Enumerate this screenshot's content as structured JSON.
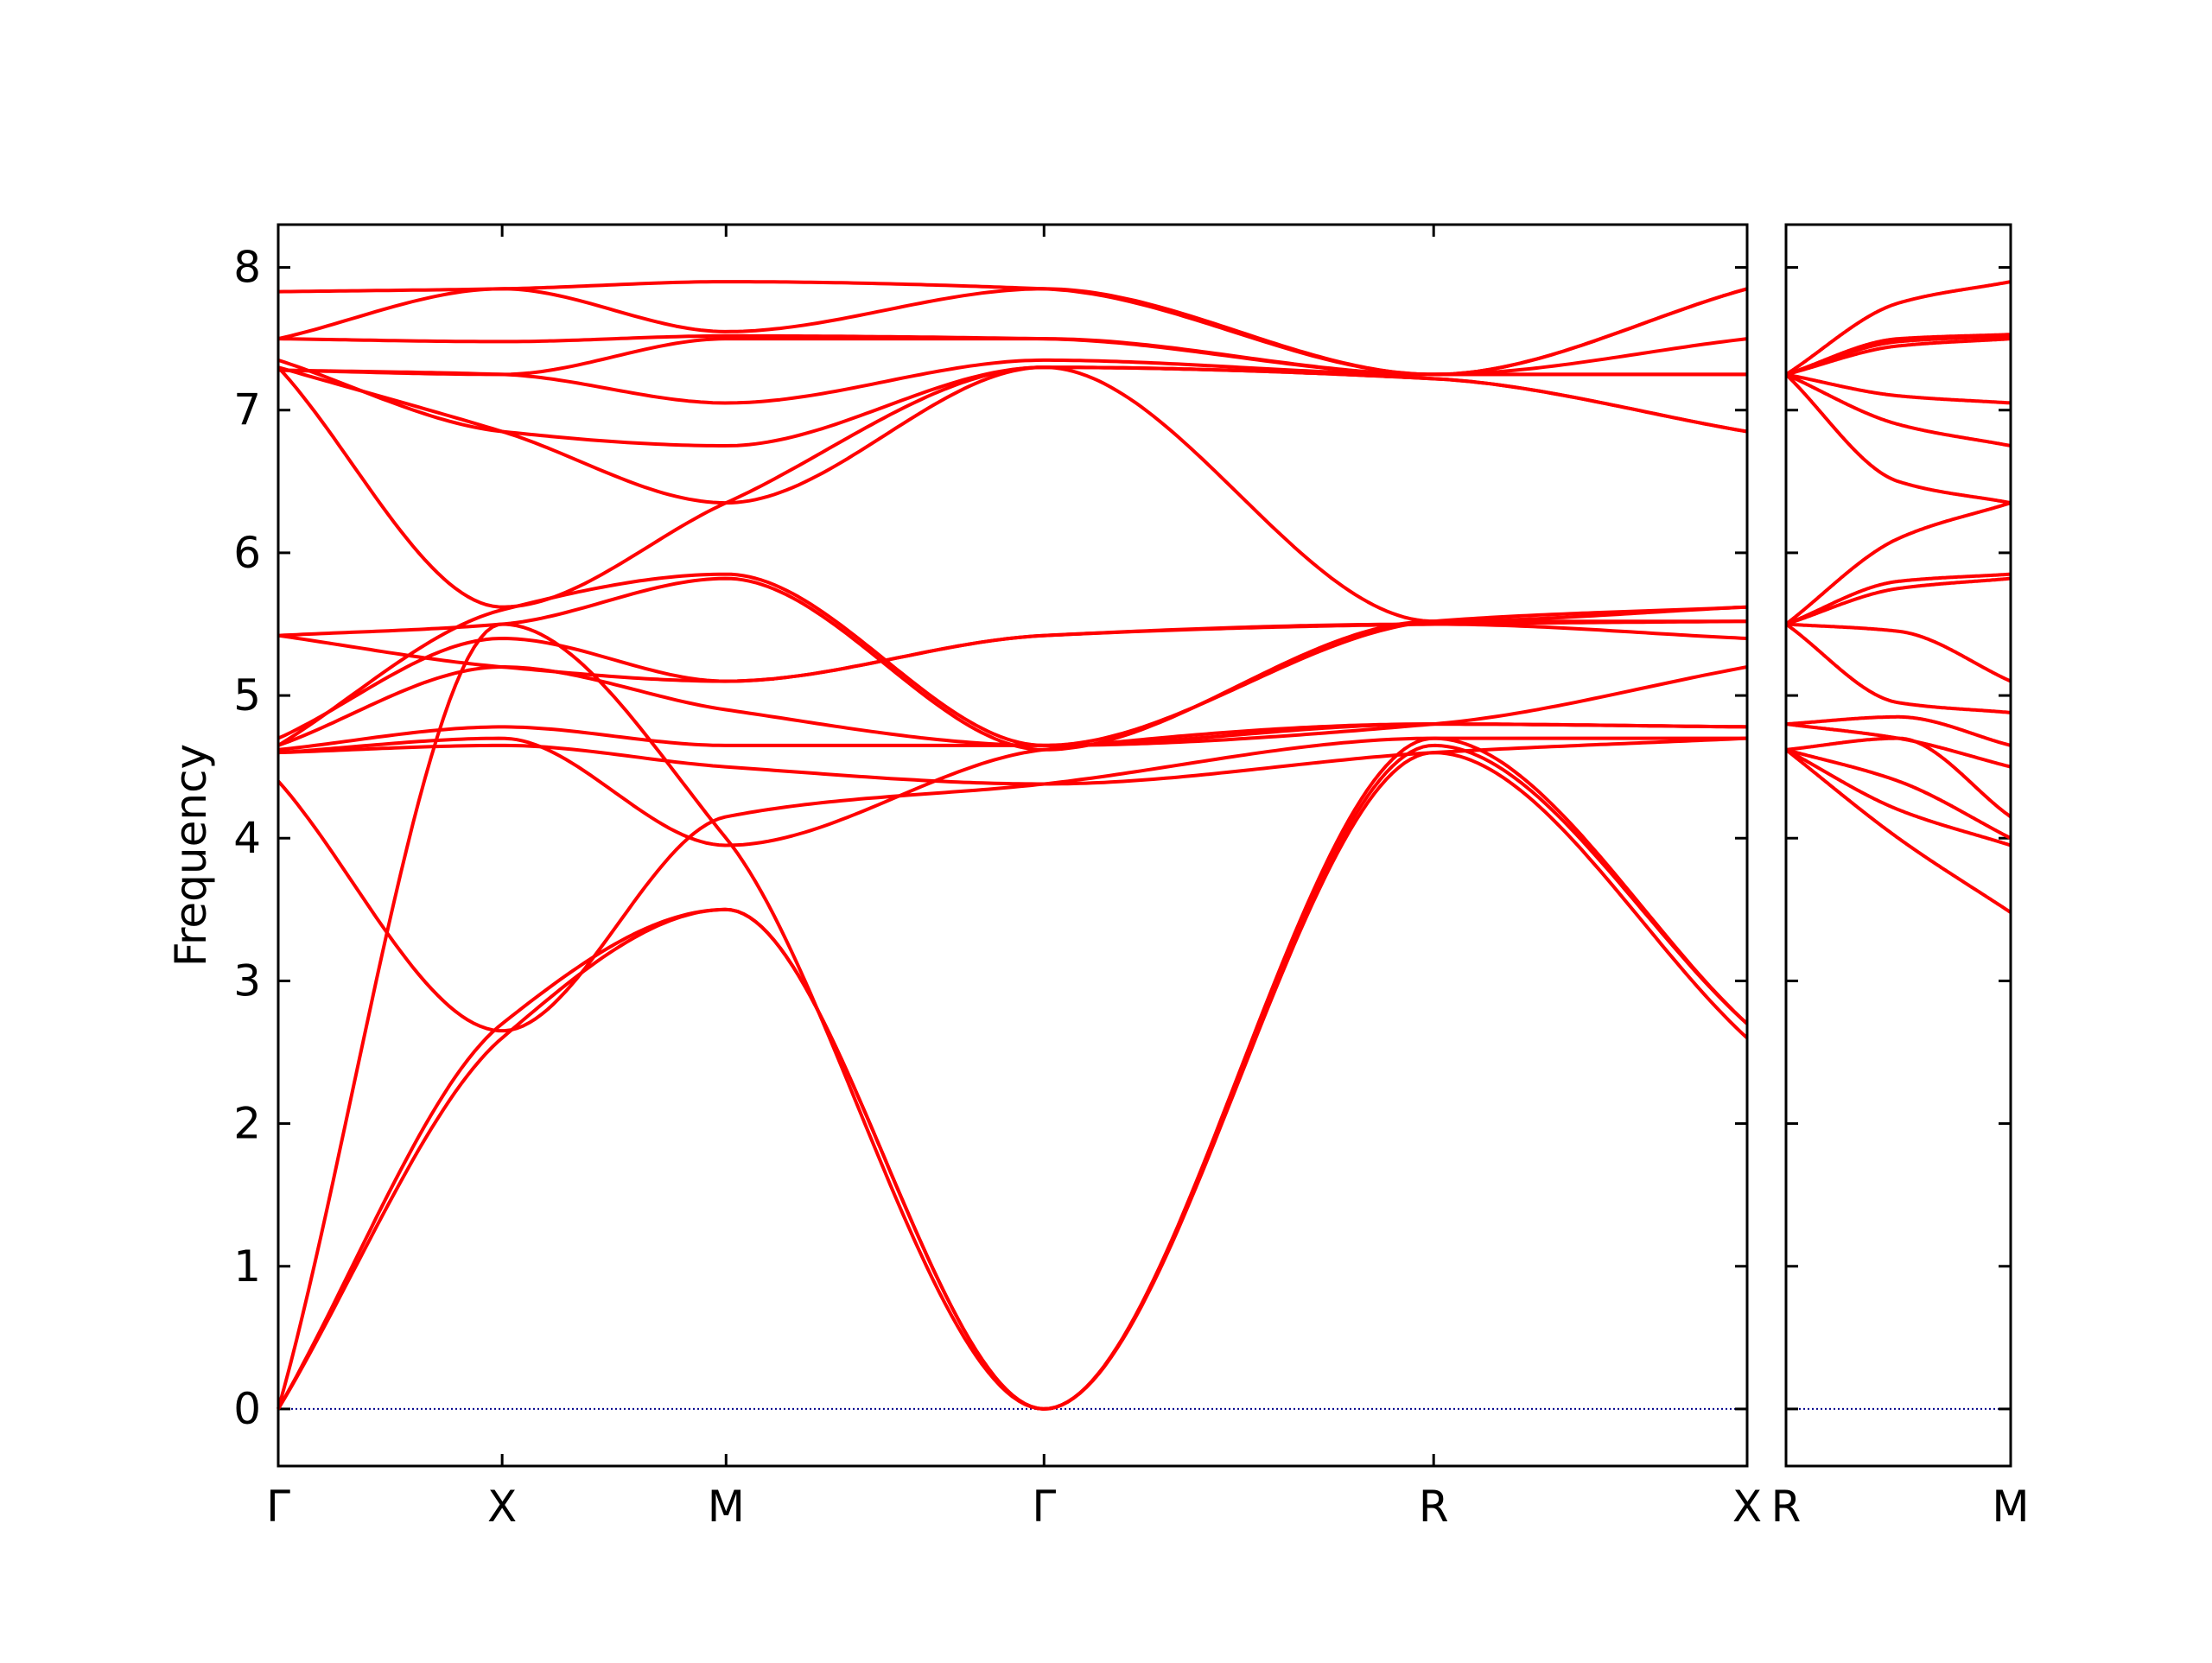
{
  "chart_data": {
    "type": "line",
    "ylabel": "Frequency",
    "ylim": [
      -0.4,
      8.3
    ],
    "yticks": [
      0,
      1,
      2,
      3,
      4,
      5,
      6,
      7,
      8
    ],
    "line_color": "#ff0000",
    "zero_line_color": "#00008b",
    "panels": [
      {
        "xlim": [
          0,
          3.28
        ],
        "ticks": [
          {
            "x": 0,
            "label": "Γ"
          },
          {
            "x": 0.5,
            "label": "X"
          },
          {
            "x": 1.0,
            "label": "M"
          },
          {
            "x": 1.71,
            "label": "Γ"
          },
          {
            "x": 2.58,
            "label": "R"
          },
          {
            "x": 3.28,
            "label": "X"
          }
        ],
        "bands": [
          {
            "x": [
              0,
              0.5,
              1.0,
              1.71,
              2.58,
              3.28
            ],
            "y": [
              0,
              2.6,
              3.5,
              0,
              4.6,
              2.6
            ]
          },
          {
            "x": [
              0,
              0.5,
              1.0,
              1.71,
              2.58,
              3.28
            ],
            "y": [
              0,
              2.7,
              3.5,
              0,
              4.65,
              2.7
            ]
          },
          {
            "x": [
              0,
              0.5,
              1.0,
              1.71,
              2.58,
              3.28
            ],
            "y": [
              0,
              5.5,
              4.0,
              0,
              4.7,
              2.7
            ]
          },
          {
            "x": [
              0,
              0.5,
              1.0,
              1.71,
              2.58,
              3.28
            ],
            "y": [
              4.4,
              2.65,
              4.15,
              4.38,
              4.7,
              4.7
            ]
          },
          {
            "x": [
              0,
              0.5,
              1.0,
              1.71,
              2.58,
              3.28
            ],
            "y": [
              4.6,
              4.65,
              4.5,
              4.38,
              4.6,
              4.7
            ]
          },
          {
            "x": [
              0,
              0.5,
              1.0,
              1.71,
              2.58,
              3.28
            ],
            "y": [
              4.6,
              4.7,
              3.95,
              4.62,
              4.8,
              4.78
            ]
          },
          {
            "x": [
              0,
              0.5,
              1.0,
              1.71,
              2.58,
              3.28
            ],
            "y": [
              4.62,
              4.78,
              4.65,
              4.65,
              4.8,
              4.78
            ]
          },
          {
            "x": [
              0,
              0.5,
              1.0,
              1.71,
              2.58,
              3.28
            ],
            "y": [
              4.65,
              5.2,
              4.9,
              4.65,
              4.8,
              5.2
            ]
          },
          {
            "x": [
              0,
              0.5,
              1.0,
              1.71,
              2.58,
              3.28
            ],
            "y": [
              4.7,
              5.4,
              5.1,
              5.42,
              5.5,
              5.4
            ]
          },
          {
            "x": [
              0,
              0.5,
              1.0,
              1.71,
              2.58,
              3.28
            ],
            "y": [
              5.42,
              5.2,
              5.1,
              5.42,
              5.5,
              5.52
            ]
          },
          {
            "x": [
              0,
              0.5,
              1.0,
              1.71,
              2.58,
              3.28
            ],
            "y": [
              5.42,
              5.5,
              5.82,
              4.62,
              5.52,
              5.52
            ]
          },
          {
            "x": [
              0,
              0.5,
              1.0,
              1.71,
              2.58,
              3.28
            ],
            "y": [
              4.65,
              5.6,
              5.85,
              4.65,
              5.52,
              5.62
            ]
          },
          {
            "x": [
              0,
              0.5,
              1.0,
              1.71,
              2.58,
              3.28
            ],
            "y": [
              7.3,
              5.62,
              6.35,
              7.3,
              5.52,
              5.62
            ]
          },
          {
            "x": [
              0,
              0.5,
              1.0,
              1.71,
              2.58,
              3.28
            ],
            "y": [
              7.3,
              6.85,
              6.35,
              7.3,
              7.22,
              6.85
            ]
          },
          {
            "x": [
              0,
              0.5,
              1.0,
              1.71,
              2.58,
              3.28
            ],
            "y": [
              7.35,
              6.85,
              6.75,
              7.3,
              7.22,
              6.85
            ]
          },
          {
            "x": [
              0,
              0.5,
              1.0,
              1.71,
              2.58,
              3.28
            ],
            "y": [
              7.28,
              7.25,
              7.05,
              7.35,
              7.25,
              7.25
            ]
          },
          {
            "x": [
              0,
              0.5,
              1.0,
              1.71,
              2.58,
              3.28
            ],
            "y": [
              7.28,
              7.25,
              7.5,
              7.5,
              7.25,
              7.25
            ]
          },
          {
            "x": [
              0,
              0.5,
              1.0,
              1.71,
              2.58,
              3.28
            ],
            "y": [
              7.5,
              7.48,
              7.52,
              7.5,
              7.25,
              7.5
            ]
          },
          {
            "x": [
              0,
              0.5,
              1.0,
              1.71,
              2.58,
              3.28
            ],
            "y": [
              7.5,
              7.85,
              7.55,
              7.85,
              7.25,
              7.85
            ]
          },
          {
            "x": [
              0,
              0.5,
              1.0,
              1.71,
              2.58,
              3.28
            ],
            "y": [
              7.83,
              7.85,
              7.9,
              7.85,
              7.25,
              7.85
            ]
          }
        ]
      },
      {
        "xlim": [
          0,
          1
        ],
        "ticks": [
          {
            "x": 0,
            "label": "R"
          },
          {
            "x": 1,
            "label": "M"
          }
        ],
        "bands": [
          {
            "x": [
              0,
              0.5,
              1
            ],
            "y": [
              4.62,
              4.0,
              3.48
            ]
          },
          {
            "x": [
              0,
              0.5,
              1
            ],
            "y": [
              4.62,
              4.2,
              3.95
            ]
          },
          {
            "x": [
              0,
              0.5,
              1
            ],
            "y": [
              4.62,
              4.4,
              4.0
            ]
          },
          {
            "x": [
              0,
              0.5,
              1
            ],
            "y": [
              4.62,
              4.7,
              4.15
            ]
          },
          {
            "x": [
              0,
              0.5,
              1
            ],
            "y": [
              4.8,
              4.7,
              4.5
            ]
          },
          {
            "x": [
              0,
              0.5,
              1
            ],
            "y": [
              4.8,
              4.85,
              4.65
            ]
          },
          {
            "x": [
              0,
              0.5,
              1
            ],
            "y": [
              5.5,
              4.95,
              4.88
            ]
          },
          {
            "x": [
              0,
              0.5,
              1
            ],
            "y": [
              5.5,
              5.45,
              5.1
            ]
          },
          {
            "x": [
              0,
              0.5,
              1
            ],
            "y": [
              5.5,
              5.75,
              5.82
            ]
          },
          {
            "x": [
              0,
              0.5,
              1
            ],
            "y": [
              5.5,
              5.8,
              5.85
            ]
          },
          {
            "x": [
              0,
              0.5,
              1
            ],
            "y": [
              5.5,
              6.1,
              6.35
            ]
          },
          {
            "x": [
              0,
              0.5,
              1
            ],
            "y": [
              7.25,
              6.5,
              6.35
            ]
          },
          {
            "x": [
              0,
              0.5,
              1
            ],
            "y": [
              7.25,
              6.9,
              6.75
            ]
          },
          {
            "x": [
              0,
              0.5,
              1
            ],
            "y": [
              7.25,
              7.1,
              7.05
            ]
          },
          {
            "x": [
              0,
              0.5,
              1
            ],
            "y": [
              7.25,
              7.45,
              7.5
            ]
          },
          {
            "x": [
              0,
              0.5,
              1
            ],
            "y": [
              7.25,
              7.48,
              7.52
            ]
          },
          {
            "x": [
              0,
              0.5,
              1
            ],
            "y": [
              7.25,
              7.5,
              7.53
            ]
          },
          {
            "x": [
              0,
              0.5,
              1
            ],
            "y": [
              7.25,
              7.75,
              7.9
            ]
          }
        ]
      }
    ]
  }
}
